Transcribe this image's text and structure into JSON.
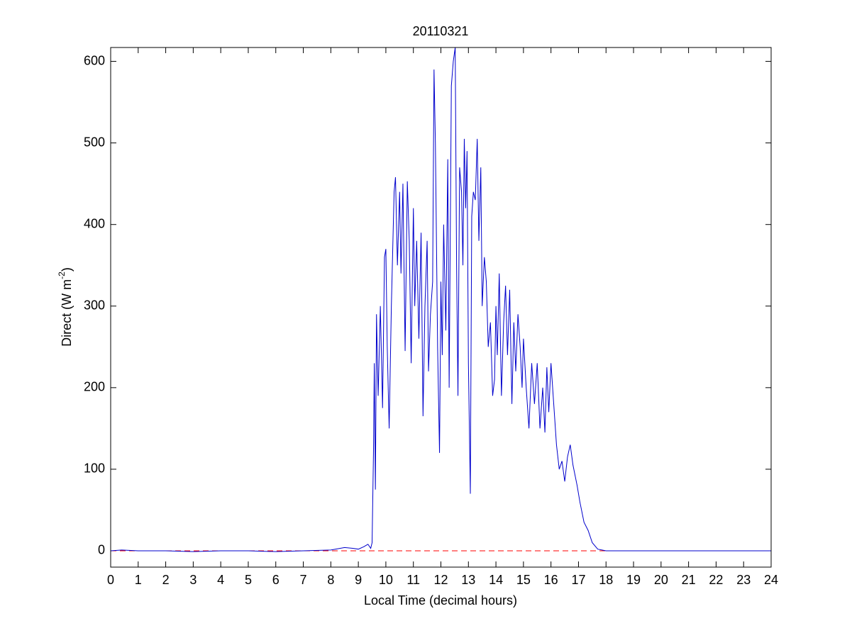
{
  "chart_data": {
    "type": "line",
    "title": "20110321",
    "xlabel": "Local Time (decimal hours)",
    "ylabel": {
      "text": "Direct (W m",
      "superscript": "-2",
      "suffix": ")"
    },
    "xlim": [
      0,
      24
    ],
    "ylim": [
      -20,
      617
    ],
    "xticks": [
      0,
      1,
      2,
      3,
      4,
      5,
      6,
      7,
      8,
      9,
      10,
      11,
      12,
      13,
      14,
      15,
      16,
      17,
      18,
      19,
      20,
      21,
      22,
      23,
      24
    ],
    "yticks": [
      0,
      100,
      200,
      300,
      400,
      500,
      600
    ],
    "reference_line": {
      "value": 0,
      "color": "#ff0000",
      "dashed": true
    },
    "series": [
      {
        "color": "#0000cc",
        "x": [
          0,
          0.4,
          1,
          2,
          3,
          4,
          5,
          6,
          7,
          8,
          8.5,
          8.8,
          9.0,
          9.2,
          9.35,
          9.45,
          9.5,
          9.55,
          9.58,
          9.62,
          9.66,
          9.72,
          9.8,
          9.88,
          9.95,
          10.0,
          10.05,
          10.12,
          10.2,
          10.3,
          10.35,
          10.42,
          10.5,
          10.55,
          10.62,
          10.7,
          10.78,
          10.85,
          10.92,
          11.0,
          11.05,
          11.12,
          11.2,
          11.28,
          11.35,
          11.42,
          11.5,
          11.55,
          11.62,
          11.7,
          11.75,
          11.8,
          11.88,
          11.95,
          12.0,
          12.05,
          12.1,
          12.18,
          12.25,
          12.3,
          12.38,
          12.45,
          12.52,
          12.57,
          12.62,
          12.68,
          12.75,
          12.8,
          12.85,
          12.9,
          12.95,
          13.0,
          13.07,
          13.12,
          13.18,
          13.25,
          13.32,
          13.38,
          13.45,
          13.5,
          13.58,
          13.65,
          13.72,
          13.8,
          13.88,
          13.95,
          14.0,
          14.05,
          14.12,
          14.2,
          14.28,
          14.35,
          14.42,
          14.5,
          14.58,
          14.65,
          14.72,
          14.8,
          14.88,
          14.95,
          15.0,
          15.1,
          15.2,
          15.3,
          15.4,
          15.5,
          15.6,
          15.7,
          15.78,
          15.85,
          15.92,
          16.0,
          16.1,
          16.2,
          16.3,
          16.4,
          16.5,
          16.6,
          16.7,
          16.8,
          16.95,
          17.05,
          17.2,
          17.35,
          17.5,
          17.7,
          18,
          19,
          20,
          21,
          22,
          23,
          24
        ],
        "values": [
          0,
          1,
          0,
          0,
          -1,
          0,
          0,
          -1,
          0,
          1,
          4,
          3,
          2,
          5,
          8,
          3,
          10,
          120,
          230,
          75,
          290,
          190,
          300,
          175,
          360,
          370,
          250,
          150,
          300,
          440,
          458,
          350,
          440,
          340,
          450,
          245,
          453,
          380,
          230,
          420,
          300,
          380,
          260,
          390,
          165,
          300,
          380,
          220,
          290,
          330,
          590,
          500,
          250,
          120,
          330,
          240,
          400,
          270,
          480,
          200,
          570,
          600,
          617,
          350,
          190,
          470,
          440,
          350,
          505,
          420,
          490,
          230,
          70,
          410,
          440,
          430,
          505,
          380,
          470,
          300,
          360,
          330,
          250,
          280,
          190,
          210,
          300,
          240,
          340,
          190,
          280,
          325,
          240,
          320,
          180,
          280,
          220,
          290,
          250,
          200,
          260,
          200,
          150,
          230,
          180,
          230,
          150,
          200,
          145,
          225,
          170,
          230,
          180,
          130,
          100,
          110,
          85,
          115,
          130,
          105,
          80,
          60,
          35,
          25,
          10,
          2,
          0,
          0,
          0,
          0,
          0,
          0,
          0
        ]
      }
    ]
  }
}
